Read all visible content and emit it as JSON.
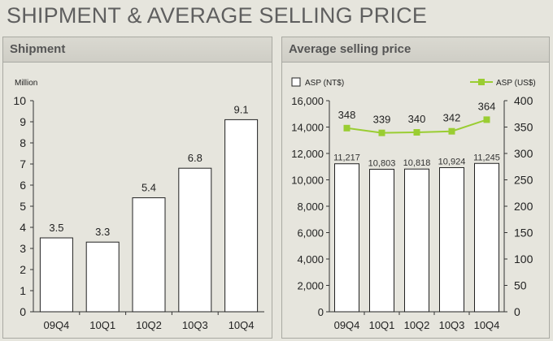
{
  "page_title": "SHIPMENT & AVERAGE SELLING PRICE",
  "colors": {
    "background": "#e6e5dd",
    "bar_fill": "#ffffff",
    "bar_stroke": "#222222",
    "line": "#9acd32"
  },
  "left_panel": {
    "title": "Shipment"
  },
  "right_panel": {
    "title": "Average selling price"
  },
  "chart_data": [
    {
      "type": "bar",
      "title": "Shipment",
      "ylabel": "Million",
      "categories": [
        "09Q4",
        "10Q1",
        "10Q2",
        "10Q3",
        "10Q4"
      ],
      "values": [
        3.5,
        3.3,
        5.4,
        6.8,
        9.1
      ],
      "data_labels": [
        "3.5",
        "3.3",
        "5.4",
        "6.8",
        "9.1"
      ],
      "ylim": [
        0,
        10
      ],
      "yticks": [
        0,
        1,
        2,
        3,
        4,
        5,
        6,
        7,
        8,
        9,
        10
      ],
      "grid": false
    },
    {
      "type": "bar",
      "title": "Average selling price",
      "categories": [
        "09Q4",
        "10Q1",
        "10Q2",
        "10Q3",
        "10Q4"
      ],
      "legend_position": "top",
      "series": [
        {
          "name": "ASP (NT$)",
          "type": "bar",
          "axis": "left",
          "values": [
            11217,
            10803,
            10818,
            10924,
            11245
          ],
          "data_labels": [
            "11,217",
            "10,803",
            "10,818",
            "10,924",
            "11,245"
          ]
        },
        {
          "name": "ASP (US$)",
          "type": "line",
          "axis": "right",
          "values": [
            348,
            339,
            340,
            342,
            364
          ],
          "data_labels": [
            "348",
            "339",
            "340",
            "342",
            "364"
          ]
        }
      ],
      "y_left": {
        "ylim": [
          0,
          16000
        ],
        "ticks": [
          0,
          2000,
          4000,
          6000,
          8000,
          10000,
          12000,
          14000,
          16000
        ],
        "tick_labels": [
          "0",
          "2,000",
          "4,000",
          "6,000",
          "8,000",
          "10,000",
          "12,000",
          "14,000",
          "16,000"
        ]
      },
      "y_right": {
        "ylim": [
          0,
          400
        ],
        "ticks": [
          0,
          50,
          100,
          150,
          200,
          250,
          300,
          350,
          400
        ],
        "tick_labels": [
          "0",
          "50",
          "100",
          "150",
          "200",
          "250",
          "300",
          "350",
          "400"
        ]
      },
      "grid": false
    }
  ]
}
